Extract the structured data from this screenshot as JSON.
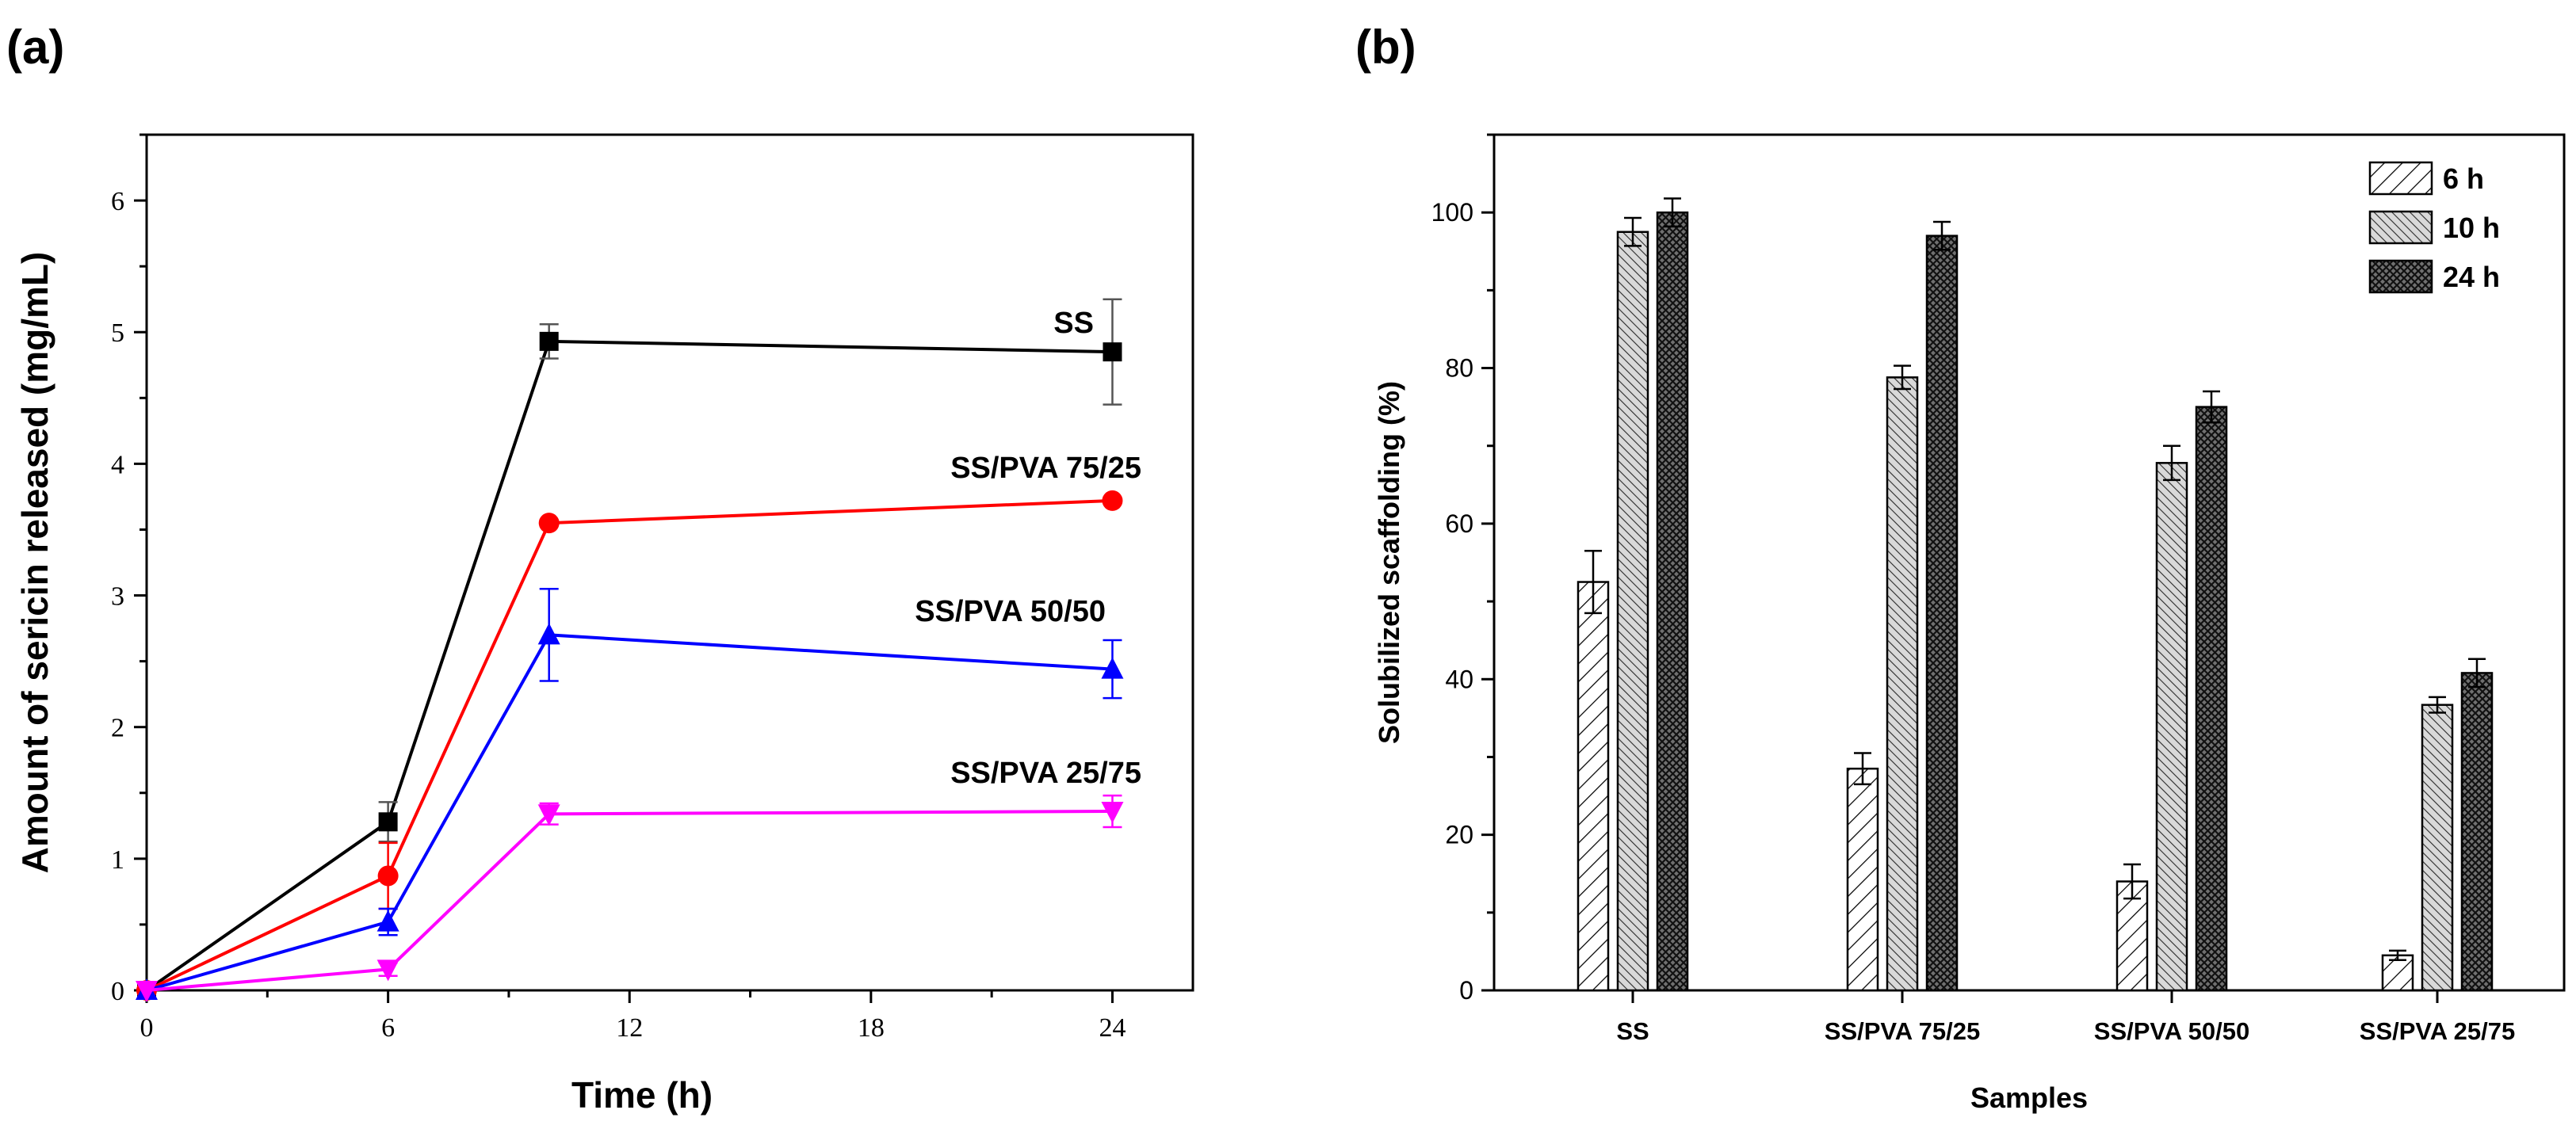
{
  "chart_data": [
    {
      "panel_label": "(a)",
      "type": "line",
      "xlabel": "Time (h)",
      "ylabel": "Amount of sericin released (mg/mL)",
      "xlim": [
        0,
        26
      ],
      "ylim": [
        0,
        6.5
      ],
      "xticks": [
        0,
        6,
        12,
        18,
        24
      ],
      "yticks": [
        0,
        1,
        2,
        3,
        4,
        5,
        6
      ],
      "x": [
        0,
        6,
        10,
        24
      ],
      "series": [
        {
          "name": "SS",
          "color": "#000000",
          "marker": "square",
          "values": [
            0,
            1.28,
            4.93,
            4.85
          ],
          "errors": [
            0,
            0.15,
            0.13,
            0.4
          ]
        },
        {
          "name": "SS/PVA 75/25",
          "color": "#ff0000",
          "marker": "circle",
          "values": [
            0,
            0.87,
            3.55,
            3.72
          ],
          "errors": [
            0,
            0.25,
            0,
            0
          ]
        },
        {
          "name": "SS/PVA 50/50",
          "color": "#0000ff",
          "marker": "triangle-up",
          "values": [
            0,
            0.52,
            2.7,
            2.44
          ],
          "errors": [
            0,
            0.1,
            0.35,
            0.22
          ]
        },
        {
          "name": "SS/PVA 25/75",
          "color": "#ff00ff",
          "marker": "triangle-down",
          "values": [
            0,
            0.16,
            1.34,
            1.36
          ],
          "errors": [
            0,
            0.05,
            0.08,
            0.12
          ]
        }
      ]
    },
    {
      "panel_label": "(b)",
      "type": "bar",
      "xlabel": "Samples",
      "ylabel": "Solubilized scaffolding (%)",
      "ylim": [
        0,
        110
      ],
      "yticks": [
        0,
        20,
        40,
        60,
        80,
        100
      ],
      "categories": [
        "SS",
        "SS/PVA 75/25",
        "SS/PVA 50/50",
        "SS/PVA 25/75"
      ],
      "series": [
        {
          "name": "6 h",
          "pattern": "diag-light",
          "values": [
            52.5,
            28.5,
            14,
            4.5
          ],
          "errors": [
            4,
            2,
            2.2,
            0.6
          ]
        },
        {
          "name": "10 h",
          "pattern": "diag-dense",
          "values": [
            97.5,
            78.8,
            67.8,
            36.7
          ],
          "errors": [
            1.8,
            1.5,
            2.2,
            1
          ]
        },
        {
          "name": "24 h",
          "pattern": "crosshatch",
          "values": [
            100,
            97,
            75,
            40.8
          ],
          "errors": [
            1.8,
            1.8,
            2,
            1.8
          ]
        }
      ],
      "legend": "top-right"
    }
  ]
}
